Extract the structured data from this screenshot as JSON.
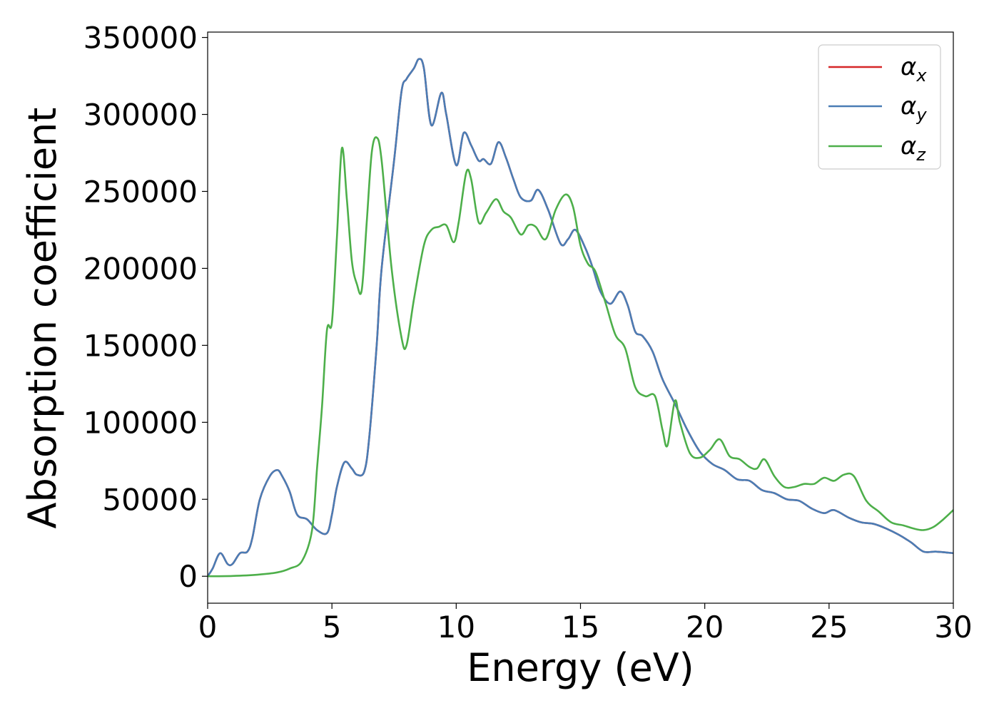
{
  "chart_data": {
    "type": "line",
    "xlabel": "Energy (eV)",
    "ylabel": "Absorption coefficient",
    "xlim": [
      0,
      30
    ],
    "ylim": [
      -17500,
      353500
    ],
    "xticks": [
      0,
      5,
      10,
      15,
      20,
      25,
      30
    ],
    "yticks": [
      0,
      50000,
      100000,
      150000,
      200000,
      250000,
      300000,
      350000
    ],
    "grid": false,
    "legend_position": "top-right",
    "series": [
      {
        "name": "α_x",
        "legend_symbol": "α",
        "legend_sub": "x",
        "color": "#d62728",
        "x": [
          0,
          0.2,
          0.5,
          0.8,
          1.0,
          1.3,
          1.6,
          1.8,
          2.1,
          2.5,
          2.8,
          3.0,
          3.3,
          3.6,
          4.0,
          4.4,
          4.8,
          5.0,
          5.2,
          5.5,
          5.8,
          6.0,
          6.3,
          6.5,
          6.8,
          7.0,
          7.5,
          7.8,
          8.0,
          8.3,
          8.5,
          8.7,
          9.0,
          9.4,
          9.6,
          10.0,
          10.3,
          10.6,
          10.9,
          11.1,
          11.4,
          11.7,
          12.0,
          12.3,
          12.6,
          13.0,
          13.3,
          13.7,
          14.2,
          14.5,
          14.8,
          15.2,
          15.5,
          15.8,
          16.2,
          16.6,
          16.9,
          17.2,
          17.5,
          17.9,
          18.3,
          18.8,
          19.3,
          19.8,
          20.3,
          20.8,
          21.3,
          21.8,
          22.3,
          22.8,
          23.3,
          23.8,
          24.3,
          24.8,
          25.2,
          25.8,
          26.3,
          26.8,
          27.3,
          27.8,
          28.3,
          28.8,
          29.3,
          30.0
        ],
        "y": [
          0,
          5000,
          15000,
          8000,
          8000,
          15000,
          16000,
          25000,
          50000,
          65000,
          69000,
          65000,
          55000,
          40000,
          37000,
          30000,
          28000,
          40000,
          58000,
          74000,
          70000,
          66000,
          68000,
          90000,
          150000,
          200000,
          270000,
          315000,
          323000,
          330000,
          336000,
          330000,
          293000,
          314000,
          300000,
          267000,
          288000,
          280000,
          270000,
          271000,
          268000,
          282000,
          272000,
          258000,
          246000,
          244000,
          251000,
          238000,
          216000,
          219000,
          225000,
          213000,
          200000,
          185000,
          177000,
          185000,
          176000,
          159000,
          156000,
          146000,
          128000,
          112000,
          95000,
          81000,
          73000,
          69000,
          63000,
          62000,
          56000,
          54000,
          50000,
          49000,
          44000,
          41000,
          43000,
          38000,
          35000,
          34000,
          31000,
          27000,
          22000,
          16000,
          16000,
          15000
        ]
      },
      {
        "name": "α_y",
        "legend_symbol": "α",
        "legend_sub": "y",
        "color": "#4a7db5",
        "x": [
          0,
          0.2,
          0.5,
          0.8,
          1.0,
          1.3,
          1.6,
          1.8,
          2.1,
          2.5,
          2.8,
          3.0,
          3.3,
          3.6,
          4.0,
          4.4,
          4.8,
          5.0,
          5.2,
          5.5,
          5.8,
          6.0,
          6.3,
          6.5,
          6.8,
          7.0,
          7.5,
          7.8,
          8.0,
          8.3,
          8.5,
          8.7,
          9.0,
          9.4,
          9.6,
          10.0,
          10.3,
          10.6,
          10.9,
          11.1,
          11.4,
          11.7,
          12.0,
          12.3,
          12.6,
          13.0,
          13.3,
          13.7,
          14.2,
          14.5,
          14.8,
          15.2,
          15.5,
          15.8,
          16.2,
          16.6,
          16.9,
          17.2,
          17.5,
          17.9,
          18.3,
          18.8,
          19.3,
          19.8,
          20.3,
          20.8,
          21.3,
          21.8,
          22.3,
          22.8,
          23.3,
          23.8,
          24.3,
          24.8,
          25.2,
          25.8,
          26.3,
          26.8,
          27.3,
          27.8,
          28.3,
          28.8,
          29.3,
          30.0
        ],
        "y": [
          0,
          5000,
          15000,
          8000,
          8000,
          15000,
          16000,
          25000,
          50000,
          65000,
          69000,
          65000,
          55000,
          40000,
          37000,
          30000,
          28000,
          40000,
          58000,
          74000,
          70000,
          66000,
          68000,
          90000,
          150000,
          200000,
          270000,
          315000,
          323000,
          330000,
          336000,
          330000,
          293000,
          314000,
          300000,
          267000,
          288000,
          280000,
          270000,
          271000,
          268000,
          282000,
          272000,
          258000,
          246000,
          244000,
          251000,
          238000,
          216000,
          219000,
          225000,
          213000,
          200000,
          185000,
          177000,
          185000,
          176000,
          159000,
          156000,
          146000,
          128000,
          112000,
          95000,
          81000,
          73000,
          69000,
          63000,
          62000,
          56000,
          54000,
          50000,
          49000,
          44000,
          41000,
          43000,
          38000,
          35000,
          34000,
          31000,
          27000,
          22000,
          16000,
          16000,
          15000
        ]
      },
      {
        "name": "α_z",
        "legend_symbol": "α",
        "legend_sub": "z",
        "color": "#4daf4a",
        "x": [
          0,
          1.0,
          2.0,
          2.8,
          3.3,
          3.8,
          4.2,
          4.4,
          4.6,
          4.8,
          5.0,
          5.2,
          5.4,
          5.6,
          5.8,
          6.0,
          6.2,
          6.4,
          6.6,
          6.8,
          7.0,
          7.4,
          7.8,
          8.0,
          8.3,
          8.7,
          9.0,
          9.3,
          9.6,
          9.9,
          10.1,
          10.4,
          10.6,
          10.9,
          11.2,
          11.6,
          11.9,
          12.2,
          12.6,
          12.9,
          13.2,
          13.6,
          14.0,
          14.4,
          14.7,
          15.0,
          15.3,
          15.6,
          16.0,
          16.4,
          16.8,
          17.2,
          17.6,
          18.0,
          18.3,
          18.5,
          18.8,
          19.0,
          19.4,
          19.8,
          20.2,
          20.6,
          21.0,
          21.4,
          21.8,
          22.1,
          22.4,
          22.8,
          23.2,
          23.6,
          24.0,
          24.4,
          24.8,
          25.2,
          25.6,
          26.0,
          26.5,
          27.0,
          27.5,
          28.0,
          28.4,
          28.8,
          29.2,
          29.6,
          30.0
        ],
        "y": [
          0,
          200,
          1000,
          2500,
          5000,
          10000,
          30000,
          70000,
          110000,
          160000,
          165000,
          220000,
          278000,
          245000,
          205000,
          190000,
          186000,
          230000,
          275000,
          285000,
          270000,
          200000,
          155000,
          150000,
          180000,
          215000,
          225000,
          227000,
          228000,
          217000,
          230000,
          262000,
          258000,
          230000,
          236000,
          245000,
          237000,
          233000,
          222000,
          228000,
          227000,
          219000,
          238000,
          248000,
          240000,
          215000,
          203000,
          198000,
          178000,
          157000,
          148000,
          123000,
          117000,
          117000,
          95000,
          85000,
          114000,
          100000,
          80000,
          77000,
          82000,
          89000,
          78000,
          76000,
          71000,
          70000,
          76000,
          65000,
          58000,
          58000,
          60000,
          60000,
          64000,
          62000,
          66000,
          65000,
          49000,
          42000,
          35000,
          33000,
          31000,
          30000,
          32000,
          37000,
          43000
        ]
      }
    ]
  }
}
